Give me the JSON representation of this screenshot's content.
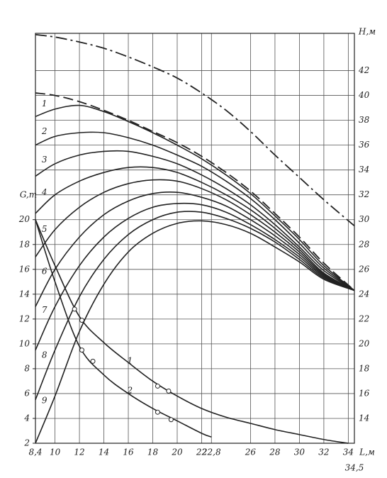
{
  "chart_data": {
    "type": "line",
    "xlabel": "L,м",
    "ylabel": "G,т",
    "y2label": "H,м",
    "xlim": [
      8.4,
      34.5
    ],
    "ylim": [
      2,
      35
    ],
    "y2lim": [
      12,
      45
    ],
    "xticks": [
      {
        "value": 8.4,
        "label": "8,4"
      },
      10,
      12,
      14,
      16,
      18,
      20,
      22,
      {
        "value": 22.8,
        "label": "22,8"
      },
      26,
      28,
      30,
      32,
      34,
      {
        "value": 34.5,
        "label": "34,5"
      }
    ],
    "yticks": [
      2,
      4,
      6,
      8,
      10,
      12,
      14,
      16,
      18,
      20
    ],
    "y2ticks": [
      14,
      16,
      18,
      20,
      22,
      24,
      26,
      28,
      30,
      32,
      34,
      36,
      38,
      40,
      42
    ],
    "grid": true,
    "series": [
      {
        "style": "dash-dot",
        "axis": "y2",
        "color": "#222",
        "x": [
          8.4,
          10,
          12,
          14,
          16,
          18,
          20,
          22,
          24,
          26,
          28,
          30,
          32,
          34.5
        ],
        "values": [
          44.9,
          44.7,
          44.3,
          43.8,
          43.1,
          42.3,
          41.4,
          40.2,
          38.8,
          37.1,
          35.2,
          33.4,
          31.6,
          29.5
        ]
      },
      {
        "style": "dashed",
        "axis": "y2",
        "color": "#222",
        "x": [
          8.4,
          10,
          12,
          14,
          16,
          18,
          20,
          22,
          24,
          26,
          28,
          30,
          32,
          34.5
        ],
        "values": [
          40.2,
          40.0,
          39.5,
          38.8,
          38.0,
          37.1,
          36.2,
          35.1,
          33.8,
          32.3,
          30.5,
          28.6,
          26.5,
          24.3
        ]
      },
      {
        "name": "1",
        "style": "solid",
        "axis": "y2",
        "color": "#222",
        "x": [
          8.4,
          10,
          12,
          14,
          16,
          18,
          20,
          22,
          24,
          26,
          28,
          30,
          32,
          34.5
        ],
        "values": [
          38.3,
          38.9,
          39.2,
          38.7,
          37.9,
          37.0,
          36.0,
          34.9,
          33.6,
          32.1,
          30.3,
          28.4,
          26.3,
          24.3
        ]
      },
      {
        "name": "2",
        "style": "solid",
        "axis": "y2",
        "color": "#222",
        "x": [
          8.4,
          10,
          12,
          14,
          16,
          18,
          20,
          22,
          24,
          26,
          28,
          30,
          32,
          34.5
        ],
        "values": [
          36.0,
          36.7,
          37.0,
          37.0,
          36.6,
          36.0,
          35.2,
          34.3,
          33.1,
          31.7,
          30.0,
          28.1,
          26.1,
          24.3
        ]
      },
      {
        "name": "3",
        "style": "solid",
        "axis": "y2",
        "color": "#222",
        "x": [
          8.4,
          10,
          12,
          14,
          16,
          18,
          20,
          22,
          24,
          26,
          28,
          30,
          32,
          34.5
        ],
        "values": [
          33.5,
          34.5,
          35.2,
          35.5,
          35.5,
          35.1,
          34.5,
          33.6,
          32.5,
          31.2,
          29.6,
          27.8,
          25.9,
          24.3
        ]
      },
      {
        "name": "4",
        "style": "solid",
        "axis": "y2",
        "color": "#222",
        "x": [
          8.4,
          10,
          12,
          14,
          16,
          18,
          20,
          22,
          24,
          26,
          28,
          30,
          32,
          34.5
        ],
        "values": [
          30.5,
          32.0,
          33.1,
          33.8,
          34.2,
          34.2,
          33.8,
          33.0,
          32.0,
          30.8,
          29.3,
          27.6,
          25.7,
          24.3
        ]
      },
      {
        "name": "5",
        "style": "solid",
        "axis": "y2",
        "color": "#222",
        "x": [
          8.4,
          10,
          12,
          14,
          16,
          18,
          20,
          22,
          24,
          26,
          28,
          30,
          32,
          34.5
        ],
        "values": [
          27.0,
          29.2,
          31.0,
          32.2,
          32.9,
          33.2,
          33.1,
          32.5,
          31.6,
          30.4,
          29.0,
          27.4,
          25.6,
          24.3
        ]
      },
      {
        "name": "6",
        "style": "solid",
        "axis": "y2",
        "color": "#222",
        "x": [
          8.4,
          10,
          12,
          14,
          16,
          18,
          20,
          22,
          24,
          26,
          28,
          30,
          32,
          34.5
        ],
        "values": [
          23.0,
          26.0,
          28.6,
          30.4,
          31.5,
          32.1,
          32.2,
          31.8,
          31.1,
          30.0,
          28.7,
          27.2,
          25.5,
          24.3
        ]
      },
      {
        "name": "7",
        "style": "solid",
        "axis": "y2",
        "color": "#222",
        "x": [
          8.4,
          10,
          12,
          14,
          16,
          18,
          20,
          22,
          24,
          26,
          28,
          30,
          32,
          34.5
        ],
        "values": [
          19.5,
          23.0,
          26.3,
          28.6,
          30.1,
          31.0,
          31.3,
          31.2,
          30.6,
          29.6,
          28.4,
          27.0,
          25.4,
          24.3
        ]
      },
      {
        "name": "8",
        "style": "solid",
        "axis": "y2",
        "color": "#222",
        "x": [
          8.4,
          10,
          12,
          14,
          16,
          18,
          20,
          22,
          24,
          26,
          28,
          30,
          32,
          34.5
        ],
        "values": [
          15.5,
          19.5,
          23.8,
          26.8,
          28.8,
          30.0,
          30.6,
          30.6,
          30.1,
          29.3,
          28.2,
          26.8,
          25.3,
          24.3
        ]
      },
      {
        "name": "9",
        "style": "solid",
        "axis": "y2",
        "color": "#222",
        "x": [
          8.4,
          10,
          12,
          14,
          16,
          18,
          20,
          22,
          24,
          26,
          28,
          30,
          32,
          34.5
        ],
        "values": [
          12.0,
          15.8,
          21.0,
          24.8,
          27.4,
          28.9,
          29.7,
          29.9,
          29.6,
          28.9,
          27.8,
          26.6,
          25.2,
          24.3
        ]
      },
      {
        "name": "1",
        "style": "solid",
        "axis": "y",
        "color": "#222",
        "x": [
          8.4,
          10,
          12,
          14,
          16,
          18,
          20,
          22,
          24,
          26,
          28,
          30,
          32,
          34
        ],
        "values": [
          20.0,
          16.3,
          12.2,
          10.1,
          8.5,
          7.0,
          5.8,
          4.8,
          4.1,
          3.6,
          3.1,
          2.7,
          2.3,
          2.0
        ]
      },
      {
        "name": "2",
        "style": "solid",
        "axis": "y",
        "color": "#222",
        "x": [
          8.4,
          10,
          12,
          14,
          16,
          18,
          20,
          22,
          22.8
        ],
        "values": [
          20.0,
          15.0,
          9.8,
          7.5,
          6.0,
          4.8,
          3.8,
          2.8,
          2.5
        ]
      }
    ],
    "markers": [
      {
        "x": [
          11.6,
          12.2,
          18.4,
          19.3
        ],
        "values": [
          12.8,
          11.9,
          6.6,
          6.2
        ]
      },
      {
        "x": [
          12.2,
          13.1,
          18.4,
          19.5
        ],
        "values": [
          9.5,
          8.6,
          4.5,
          3.9
        ]
      }
    ]
  }
}
